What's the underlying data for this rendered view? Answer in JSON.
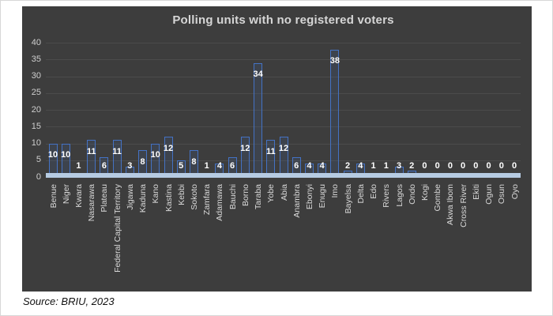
{
  "page": {
    "source_note": "Source: BRIU, 2023"
  },
  "chart_data": {
    "type": "bar",
    "title": "Polling units with no registered voters",
    "categories": [
      "Benue",
      "Niger",
      "Kwara",
      "Nasarawa",
      "Plateau",
      "Federal Capital Territory",
      "Jigawa",
      "Kaduna",
      "Kano",
      "Kastina",
      "Kebbi",
      "Sokoto",
      "Zamfara",
      "Adamawa",
      "Bauchi",
      "Borno",
      "Taraba",
      "Yobe",
      "Abia",
      "Anambra",
      "Ebonyi",
      "Enugu",
      "Imo",
      "Bayelsa",
      "Delta",
      "Edo",
      "Rivers",
      "Lagos",
      "Ondo",
      "Kogi",
      "Gombe",
      "Akwa Ibom",
      "Cross River",
      "Ekiti",
      "Ogun",
      "Osun",
      "Oyo"
    ],
    "values": [
      10,
      10,
      1,
      11,
      6,
      11,
      3,
      8,
      10,
      12,
      5,
      8,
      1,
      4,
      6,
      12,
      34,
      11,
      12,
      6,
      4,
      4,
      38,
      2,
      4,
      1,
      1,
      3,
      2,
      0,
      0,
      0,
      0,
      0,
      0,
      0,
      0
    ],
    "xlabel": "",
    "ylabel": "",
    "ylim": [
      0,
      40
    ],
    "ytick_step": 5,
    "grid": true,
    "legend": "none",
    "data_labels": true,
    "colors": {
      "plot_bg": "#3d3d3d",
      "title": "#d6d6d6",
      "gridline": "#4b4b4b",
      "axis_tick_label": "#cfcfcf",
      "category_label": "#d9d9d9",
      "bar_border": "#4472c4",
      "bar_fill": "rgba(68,114,196,0.12)",
      "data_label": "#ffffff",
      "baseline_band": "#b6cbe2"
    }
  }
}
